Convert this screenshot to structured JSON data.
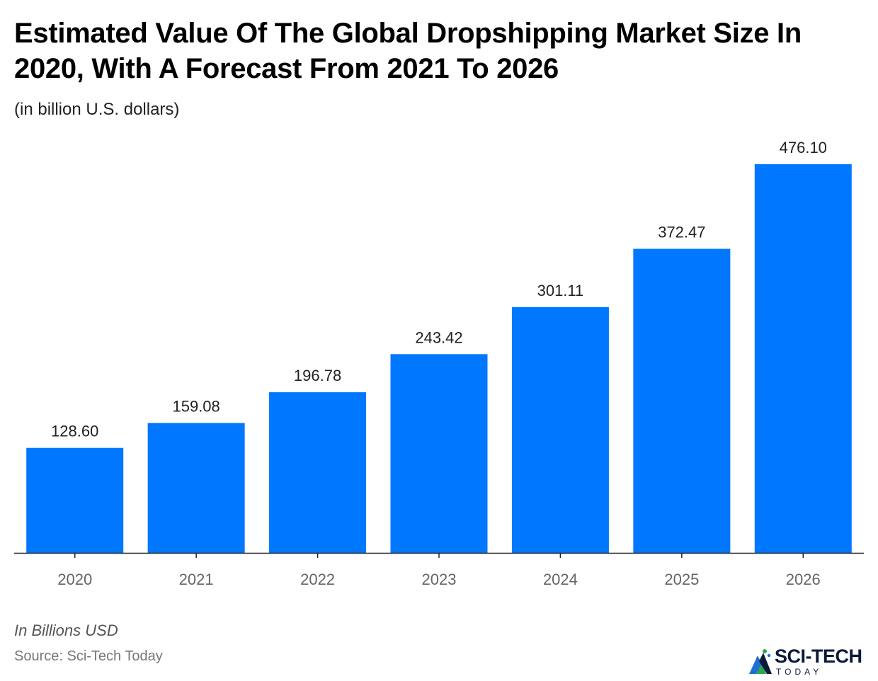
{
  "chart_data": {
    "type": "bar",
    "title": "Estimated Value Of The Global Dropshipping Market Size In 2020, With A Forecast From 2021 To 2026",
    "subtitle": "(in billion U.S. dollars)",
    "categories": [
      "2020",
      "2021",
      "2022",
      "2023",
      "2024",
      "2025",
      "2026"
    ],
    "values": [
      128.6,
      159.08,
      196.78,
      243.42,
      301.11,
      372.47,
      476.1
    ],
    "value_labels": [
      "128.60",
      "159.08",
      "196.78",
      "243.42",
      "301.11",
      "372.47",
      "476.10"
    ],
    "xlabel": "",
    "ylabel": "",
    "ylim": [
      0,
      476.1
    ],
    "grid": false,
    "bar_color": "#0077ff"
  },
  "footer": {
    "note": "In Billions USD",
    "source": "Source: Sci-Tech Today"
  },
  "logo": {
    "name": "SCI-TECH",
    "sub": "TODAY"
  }
}
